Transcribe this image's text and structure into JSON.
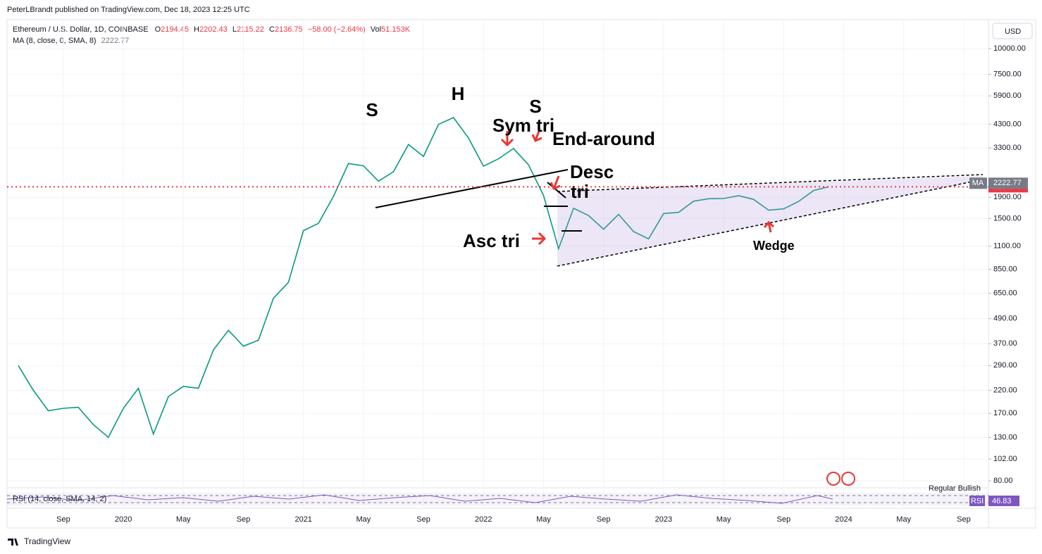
{
  "header": {
    "publisher": "PeterLBrandt published on TradingView.com, Dec 18, 2023 12:25 UTC",
    "symbol": "Ethereum / U.S. Dollar, 1D, COINBASE",
    "open_label": "O",
    "open": "2194.45",
    "high_label": "H",
    "high": "2202.43",
    "low_label": "L",
    "low": "2115.22",
    "close_label": "C",
    "close": "2136.75",
    "change": "−58.00 (−2.64%)",
    "vol_label": "Vol",
    "vol": "51.153K",
    "ma_legend": "MA (8, close, 0, SMA, 8)",
    "ma_legend_value": "2222.77",
    "currency": "USD"
  },
  "chart_data": {
    "type": "line",
    "categories": [
      null,
      null,
      null,
      "Sep",
      null,
      null,
      null,
      "2020",
      null,
      null,
      null,
      "May",
      null,
      null,
      null,
      "Sep",
      null,
      null,
      null,
      "2021",
      null,
      null,
      null,
      "May",
      null,
      null,
      null,
      "Sep",
      null,
      null,
      null,
      "2022",
      null,
      null,
      null,
      "May",
      null,
      null,
      null,
      "Sep",
      null,
      null,
      null,
      "2023",
      null,
      null,
      null,
      "May",
      null,
      null,
      null,
      "Sep",
      null,
      null,
      null,
      "2024",
      null,
      null,
      null,
      "May",
      null,
      null,
      null,
      "Sep",
      null
    ],
    "series": [
      {
        "name": "Ethereum / U.S. Dollar",
        "color": "#089981",
        "values": [
          290,
          220,
          175,
          180,
          182,
          150,
          130,
          180,
          225,
          135,
          205,
          230,
          225,
          345,
          430,
          360,
          385,
          615,
          735,
          1310,
          1420,
          1920,
          2770,
          2700,
          2275,
          2530,
          3430,
          3000,
          4290,
          4630,
          3680,
          2690,
          2920,
          3280,
          2730,
          1940,
          1070,
          1680,
          1550,
          1330,
          1570,
          1295,
          1195,
          1585,
          1605,
          1820,
          1870,
          1875,
          1935,
          1855,
          1645,
          1670,
          1815,
          2050,
          2137,
          null,
          null,
          null,
          null,
          null,
          null,
          null,
          null,
          null,
          null
        ]
      }
    ],
    "log_scale": true,
    "ylim": [
      74,
      13600
    ],
    "yticks": [
      {
        "value": 10000,
        "label": "10000.00"
      },
      {
        "value": 7500,
        "label": "7500.00"
      },
      {
        "value": 5900,
        "label": "5900.00"
      },
      {
        "value": 4300,
        "label": "4300.00"
      },
      {
        "value": 3300,
        "label": "3300.00"
      },
      {
        "value": 1900,
        "label": "1900.00"
      },
      {
        "value": 1500,
        "label": "1500.00"
      },
      {
        "value": 1100,
        "label": "1100.00"
      },
      {
        "value": 850,
        "label": "850.00"
      },
      {
        "value": 650,
        "label": "650.00"
      },
      {
        "value": 490,
        "label": "490.00"
      },
      {
        "value": 370,
        "label": "370.00"
      },
      {
        "value": 290,
        "label": "290.00"
      },
      {
        "value": 220,
        "label": "220.00"
      },
      {
        "value": 170,
        "label": "170.00"
      },
      {
        "value": 130,
        "label": "130.00"
      },
      {
        "value": 102,
        "label": "102.00"
      },
      {
        "value": 80,
        "label": "80.00"
      }
    ],
    "grid": true,
    "last_price": 2136.75,
    "last_price_color": "#f23645",
    "ma_value": 2222.77,
    "ma_tag": "MA",
    "annotations": {
      "s_left": "S",
      "h": "H",
      "s_right": "S",
      "sym_tri": "Sym tri",
      "end_around": "End-around",
      "desc_tri_1": "Desc",
      "desc_tri_2": "tri",
      "asc_tri": "Asc tri",
      "wedge": "Wedge"
    },
    "rsi": {
      "legend": "RSI (14, close, SMA, 14, 2)",
      "value": 46.83,
      "tag": "RSI",
      "divergence": "Regular Bullish"
    }
  },
  "footer": "TradingView"
}
